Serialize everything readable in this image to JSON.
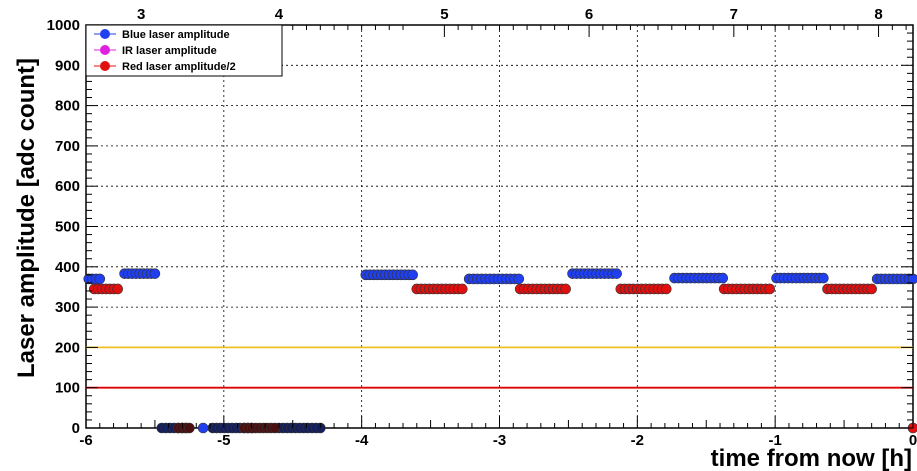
{
  "chart_data": {
    "type": "scatter",
    "title": "",
    "xlabel": "time from now [h]",
    "ylabel": "Laser amplitude [adc count]",
    "xlim": [
      -6,
      0
    ],
    "ylim": [
      0,
      1000
    ],
    "x_ticks": [
      -6,
      -5,
      -4,
      -3,
      -2,
      -1,
      0
    ],
    "x_tick_labels": [
      "-6",
      "-5",
      "-4",
      "-3",
      "-2",
      "-1",
      "0"
    ],
    "y_ticks": [
      0,
      100,
      200,
      300,
      400,
      500,
      600,
      700,
      800,
      900,
      1000
    ],
    "y_tick_labels": [
      "0",
      "100",
      "200",
      "300",
      "400",
      "500",
      "600",
      "700",
      "800",
      "900",
      "1000"
    ],
    "top_axis_ticks": [
      3,
      4,
      5,
      6,
      7,
      8
    ],
    "top_axis_labels": [
      "3",
      "4",
      "5",
      "6",
      "7",
      "8"
    ],
    "top_axis_positions": [
      -5.6,
      -4.6,
      -3.4,
      -2.35,
      -1.3,
      -0.25
    ],
    "grid": true,
    "legend_position": "top-left",
    "series": [
      {
        "name": "Blue laser amplitude",
        "color": "#1f3ff0",
        "segments": [
          {
            "x_start": -5.98,
            "x_end": -5.9,
            "y": 370
          },
          {
            "x_start": -5.72,
            "x_end": -5.5,
            "y": 383
          },
          {
            "x_start": -3.97,
            "x_end": -3.63,
            "y": 380
          },
          {
            "x_start": -3.22,
            "x_end": -2.86,
            "y": 370
          },
          {
            "x_start": -2.47,
            "x_end": -2.15,
            "y": 383
          },
          {
            "x_start": -1.73,
            "x_end": -1.38,
            "y": 372
          },
          {
            "x_start": -0.99,
            "x_end": -0.65,
            "y": 372
          },
          {
            "x_start": -0.26,
            "x_end": 0.0,
            "y": 370
          },
          {
            "x_start": -5.45,
            "x_end": -5.27,
            "y": 0
          },
          {
            "x_start": -5.08,
            "x_end": -4.8,
            "y": 0
          },
          {
            "x_start": -4.6,
            "x_end": -4.3,
            "y": 0
          }
        ],
        "points": [
          {
            "x": -5.15,
            "y": 0
          }
        ]
      },
      {
        "name": "IR laser amplitude",
        "color": "#e020e0",
        "segments": [],
        "points": []
      },
      {
        "name": "Red laser amplitude/2",
        "color": "#e01010",
        "segments": [
          {
            "x_start": -5.94,
            "x_end": -5.77,
            "y": 345
          },
          {
            "x_start": -3.6,
            "x_end": -3.27,
            "y": 345
          },
          {
            "x_start": -2.85,
            "x_end": -2.52,
            "y": 345
          },
          {
            "x_start": -2.12,
            "x_end": -1.79,
            "y": 345
          },
          {
            "x_start": -1.37,
            "x_end": -1.04,
            "y": 345
          },
          {
            "x_start": -0.62,
            "x_end": -0.3,
            "y": 345
          },
          {
            "x_start": -5.33,
            "x_end": -5.25,
            "y": 0
          },
          {
            "x_start": -4.85,
            "x_end": -4.63,
            "y": 0
          }
        ],
        "points": [
          {
            "x": 0.0,
            "y": 0
          }
        ]
      }
    ],
    "reference_lines": [
      {
        "y": 200,
        "color": "#f0c020"
      },
      {
        "y": 100,
        "color": "#e00000"
      }
    ]
  }
}
